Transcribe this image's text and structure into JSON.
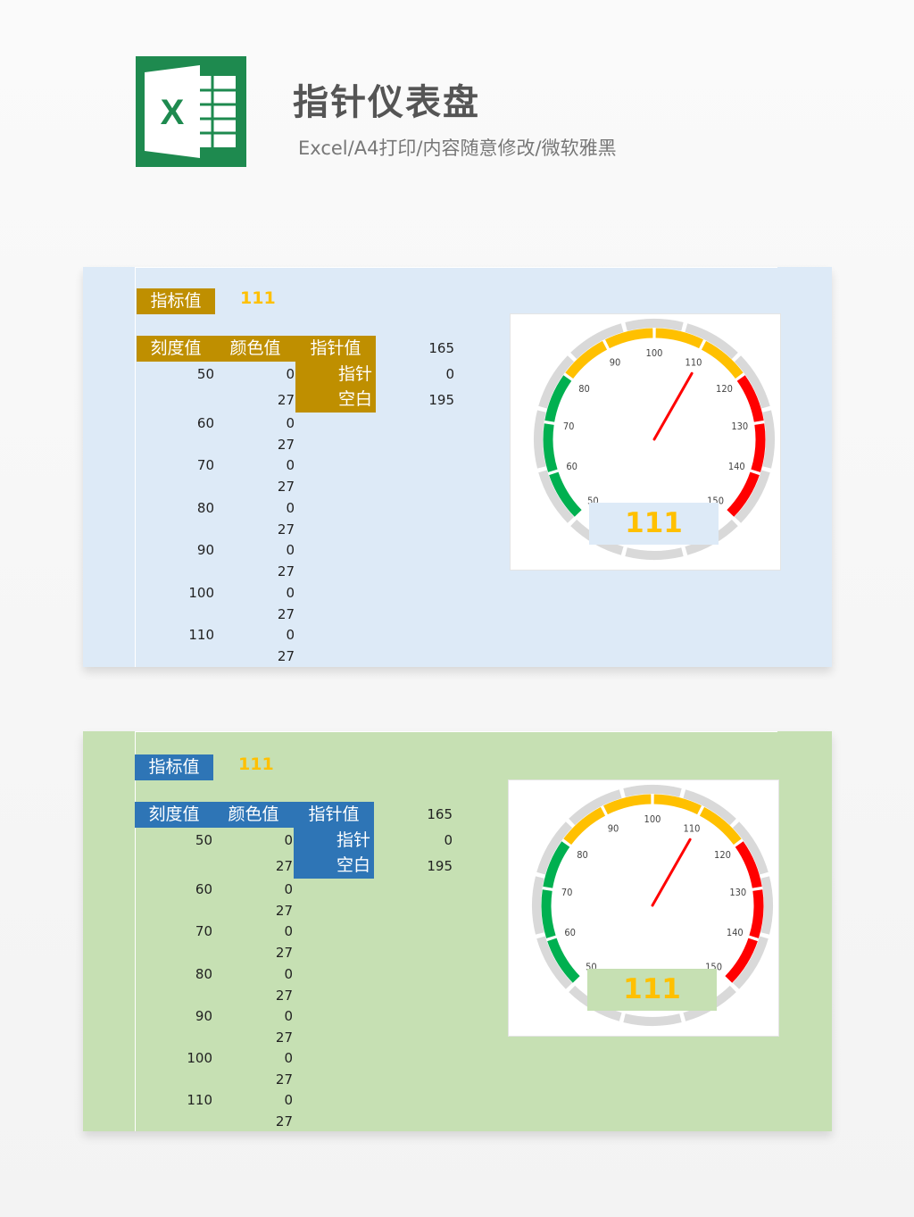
{
  "header": {
    "title": "指针仪表盘",
    "subtitle": "Excel/A4打印/内容随意修改/微软雅黑",
    "logo_letter": "X"
  },
  "colors": {
    "gray": "#d9d9d9",
    "green": "#00b050",
    "yellow": "#ffc000",
    "red": "#ff0000",
    "panel1_bg": "#ddeaf7",
    "panel1_accent": "#bf8f00",
    "panel2_bg": "#c6e0b3",
    "panel2_accent": "#2e75b6"
  },
  "panels": [
    {
      "indicator_label": "指标值",
      "indicator_value": "111",
      "col_headers": [
        "刻度值",
        "颜色值",
        "指针值"
      ],
      "pointer_rows": [
        {
          "label": "指针",
          "value": "0"
        },
        {
          "label": "空白",
          "value": "195"
        }
      ],
      "pointer_header_value": "165",
      "scale_values": [
        "50",
        "60",
        "70",
        "80",
        "90",
        "100",
        "110"
      ],
      "color_values": [
        "0",
        "27"
      ]
    },
    {
      "indicator_label": "指标值",
      "indicator_value": "111",
      "col_headers": [
        "刻度值",
        "颜色值",
        "指针值"
      ],
      "pointer_rows": [
        {
          "label": "指针",
          "value": "0"
        },
        {
          "label": "空白",
          "value": "195"
        }
      ],
      "pointer_header_value": "165",
      "scale_values": [
        "50",
        "60",
        "70",
        "80",
        "90",
        "100",
        "110"
      ],
      "color_values": [
        "0",
        "27"
      ]
    }
  ],
  "gauge": {
    "value": 111,
    "display_value": "111",
    "tick_labels": [
      "50",
      "60",
      "70",
      "80",
      "90",
      "100",
      "110",
      "120",
      "130",
      "140",
      "150"
    ],
    "color_bands": [
      "green",
      "green",
      "green",
      "yellow",
      "yellow",
      "yellow",
      "yellow",
      "red",
      "red",
      "red"
    ]
  }
}
